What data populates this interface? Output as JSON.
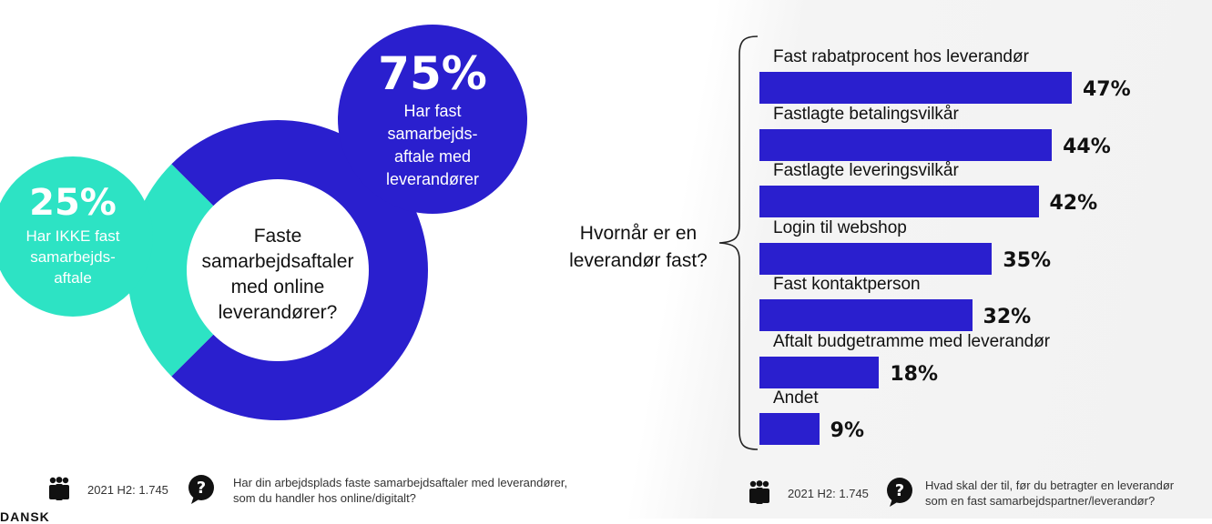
{
  "colors": {
    "accent": "#2a1fce",
    "teal": "#2de3c4",
    "text": "#111111"
  },
  "donut": {
    "center_question": [
      "Faste",
      "samarbejdsaftaler",
      "med online",
      "leverandører?"
    ],
    "yes": {
      "percent_label": "75%",
      "value": 75,
      "lines": [
        "Har fast",
        "samarbejds-",
        "aftale med",
        "leverandører"
      ]
    },
    "no": {
      "percent_label": "25%",
      "value": 25,
      "lines": [
        "Har IKKE fast",
        "samarbejds-",
        "aftale"
      ]
    }
  },
  "bars": {
    "question": [
      "Hvornår er en",
      "leverandør fast?"
    ]
  },
  "chart_data": [
    {
      "type": "pie",
      "categories": [
        "Har fast samarbejdsaftale med leverandører",
        "Har IKKE fast samarbejdsaftale"
      ],
      "values": [
        75,
        25
      ],
      "title": "Faste samarbejdsaftaler med online leverandører?"
    },
    {
      "type": "bar",
      "orientation": "horizontal",
      "title": "Hvornår er en leverandør fast?",
      "categories": [
        "Fast rabatprocent hos leverandør",
        "Fastlagte betalingsvilkår",
        "Fastlagte leveringsvilkår",
        "Login til webshop",
        "Fast kontaktperson",
        "Aftalt budgetramme med leverandør",
        "Andet"
      ],
      "values": [
        47,
        44,
        42,
        35,
        32,
        18,
        9
      ],
      "value_labels": [
        "47%",
        "44%",
        "42%",
        "35%",
        "32%",
        "18%",
        "9%"
      ]
    }
  ],
  "footer_left": {
    "sample": "2021 H2: 1.745",
    "question": [
      "Har din arbejdsplads faste samarbejdsaftaler med leverandører,",
      "som du handler hos online/digitalt?"
    ],
    "people_icon": "people-icon",
    "question_icon": "question-bubble-icon"
  },
  "footer_right": {
    "sample": "2021 H2: 1.745",
    "question": [
      "Hvad skal der til, før du betragter en leverandør",
      "som en fast samarbejdspartner/leverandør?"
    ],
    "people_icon": "people-icon",
    "question_icon": "question-bubble-icon"
  },
  "corner_text": "DANSK"
}
